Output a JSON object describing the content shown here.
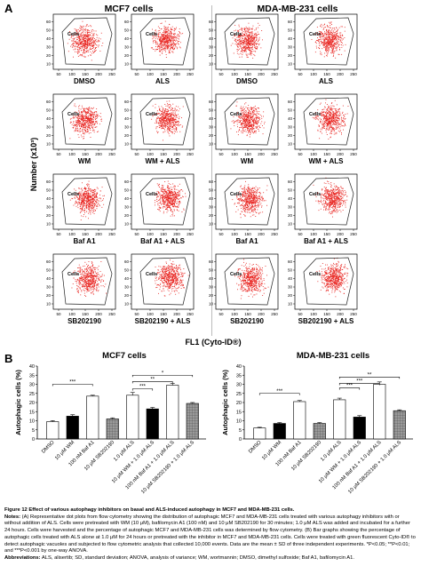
{
  "panel_a": {
    "letter": "A",
    "col_titles": [
      "MCF7 cells",
      "MDA-MB-231 cells"
    ],
    "y_title": "Number (x10³)",
    "x_title": "FL1 (Cyto-ID®)",
    "gate_label": "Cells",
    "row_labels": [
      [
        "DMSO",
        "ALS",
        "DMSO",
        "ALS"
      ],
      [
        "WM",
        "WM + ALS",
        "WM",
        "WM + ALS"
      ],
      [
        "Baf A1",
        "Baf A1 + ALS",
        "Baf A1",
        "Baf A1 + ALS"
      ],
      [
        "SB202190",
        "SB202190 + ALS",
        "SB202190",
        "SB202190 + ALS"
      ]
    ],
    "x_ticks": [
      "50",
      "100",
      "150",
      "200",
      "250"
    ],
    "y_ticks": [
      "10",
      "20",
      "30",
      "40",
      "50",
      "60"
    ],
    "scatter_color": "#e8231f"
  },
  "panel_b": {
    "letter": "B",
    "chart_data": [
      {
        "type": "bar",
        "title": "MCF7 cells",
        "ylabel": "Autophagic cells (%)",
        "ylim": [
          0,
          40
        ],
        "yticks": [
          "0",
          "5",
          "10",
          "15",
          "20",
          "25",
          "30",
          "35",
          "40"
        ],
        "categories": [
          "DMSO",
          "10 μM WM",
          "100 nM Baf A1",
          "10 μM SB202190",
          "1.0 μM ALS",
          "10 μM WM + 1.0 μM ALS",
          "100 nM Baf A1 + 1.0 μM ALS",
          "10 μM SB202190 + 1.0 μM ALS"
        ],
        "values": [
          9.5,
          12.5,
          23.5,
          11,
          24,
          16.5,
          29.5,
          19.5
        ],
        "errors": [
          0.6,
          0.8,
          0.5,
          0.6,
          1.5,
          0.8,
          0.9,
          0.5
        ],
        "significance": [
          {
            "from": 0,
            "to": 2,
            "label": "***",
            "y": 30
          },
          {
            "from": 4,
            "to": 6,
            "label": "**",
            "y": 31.5
          },
          {
            "from": 4,
            "to": 5,
            "label": "***",
            "y": 27.5
          },
          {
            "from": 4,
            "to": 7,
            "label": "*",
            "y": 35
          }
        ]
      },
      {
        "type": "bar",
        "title": "MDA-MB-231 cells",
        "ylabel": "Autophagic cells (%)",
        "ylim": [
          0,
          40
        ],
        "yticks": [
          "0",
          "5",
          "10",
          "15",
          "20",
          "25",
          "30",
          "35",
          "40"
        ],
        "categories": [
          "DMSO",
          "10 μM WM",
          "100 nM Baf A1",
          "10 μM SB202190",
          "1.0 μM ALS",
          "10 μM WM + 1.0 μM ALS",
          "100 nM Baf A1 + 1.0 μM ALS",
          "10 μM SB202190 + 1.0 μM ALS"
        ],
        "values": [
          6,
          8.5,
          20.5,
          8.5,
          21.5,
          12,
          30,
          15.5
        ],
        "errors": [
          0.4,
          0.5,
          0.6,
          0.5,
          0.9,
          0.8,
          1.3,
          0.5
        ],
        "significance": [
          {
            "from": 0,
            "to": 2,
            "label": "***",
            "y": 25
          },
          {
            "from": 4,
            "to": 5,
            "label": "***",
            "y": 28
          },
          {
            "from": 4,
            "to": 6,
            "label": "***",
            "y": 30.5
          },
          {
            "from": 4,
            "to": 7,
            "label": "**",
            "y": 34
          }
        ]
      }
    ],
    "bar_styles": [
      {
        "fill": "#ffffff",
        "pattern": "none"
      },
      {
        "fill": "#000000",
        "pattern": "none"
      },
      {
        "fill": "#ffffff",
        "pattern": "none"
      },
      {
        "fill": "#8a8a8a",
        "pattern": "grid"
      },
      {
        "fill": "#ffffff",
        "pattern": "none"
      },
      {
        "fill": "#000000",
        "pattern": "none"
      },
      {
        "fill": "#ffffff",
        "pattern": "none"
      },
      {
        "fill": "#8a8a8a",
        "pattern": "grid"
      }
    ]
  },
  "caption": {
    "title": "Figure 12 Effect of various autophagy inhibitors on basal and ALS-induced autophagy in MCF7 and MDA-MB-231 cells.",
    "notes_label": "Notes:",
    "notes_text": "(A) Representative dot plots from flow cytometry showing the distribution of autophagic MCF7 and MDA-MB-231 cells treated with various autophagy inhibitors with or without addition of ALS. Cells were pretreated with WM (10 μM), bafilomycin A1 (100 nM) and 10 μM SB202190 for 30 minutes; 1.0 μM ALS was added and incubated for a further 24 hours. Cells were harvested and the percentage of autophagic MCF7 and MDA-MB-231 cells was determined by flow cytometry. (B) Bar graphs showing the percentage of autophagic cells treated with ALS alone at 1.0 μM for 24 hours or pretreated with the inhibitor in MCF7 and MDA-MB-231 cells. Cells were treated with green fluorescent Cyto-ID® to detect autophagic vacuoles and subjected to flow cytometric analysis that collected 10,000 events. Data are the mean ± SD of three independent experiments. *P<0.05; **P<0.01; and ***P<0.001 by one-way ANOVA.",
    "abbrev_label": "Abbreviations:",
    "abbrev_text": "ALS, alisertib; SD, standard deviation; ANOVA, analysis of variance; WM, wortmannin; DMSO, dimethyl sulfoxide; Baf A1, bafilomycin A1."
  }
}
